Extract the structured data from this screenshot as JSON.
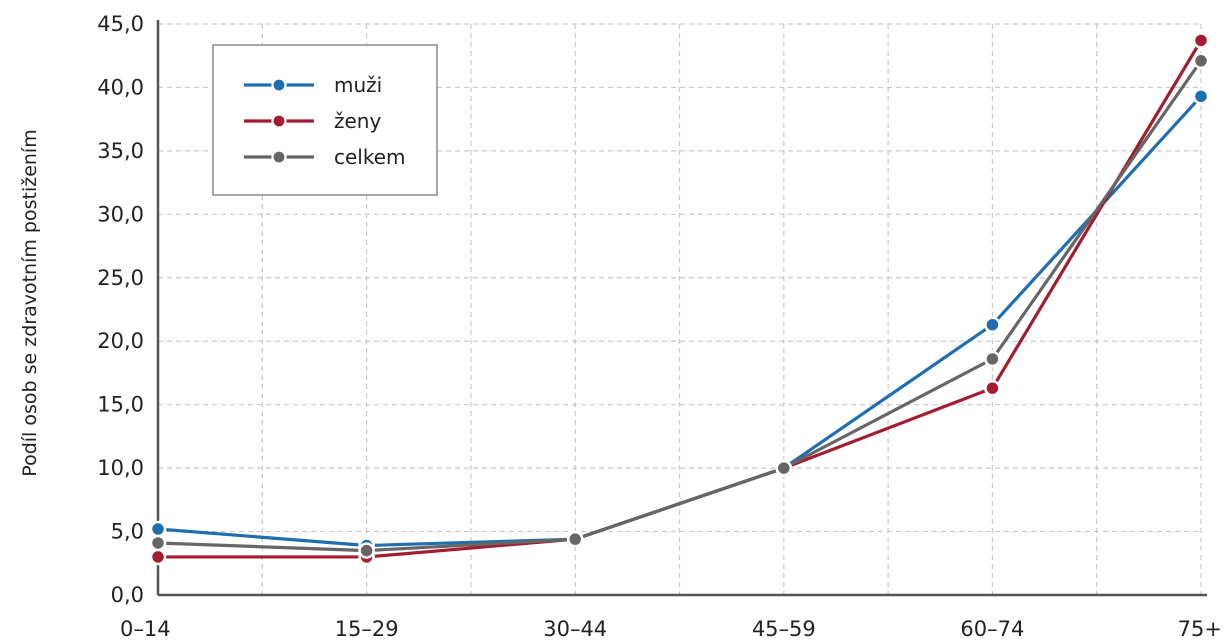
{
  "chart_data": {
    "type": "line",
    "ylabel": "Podíl osob se zdravotním postižením",
    "xlabel": "",
    "categories": [
      "0–14",
      "15–29",
      "30–44",
      "45–59",
      "60–74",
      "75+"
    ],
    "ylim": [
      0,
      45
    ],
    "y_ticks": [
      0,
      5,
      10,
      15,
      20,
      25,
      30,
      35,
      40,
      45
    ],
    "y_tick_labels": [
      "0,0",
      "5,0",
      "10,0",
      "15,0",
      "20,0",
      "25,0",
      "30,0",
      "35,0",
      "40,0",
      "45,0"
    ],
    "grid": true,
    "legend_position": "top-left",
    "series": [
      {
        "name": "muži",
        "color": "#1f6eb1",
        "values": [
          5.2,
          3.9,
          4.4,
          10.0,
          21.3,
          39.3
        ]
      },
      {
        "name": "ženy",
        "color": "#a51c30",
        "values": [
          3.0,
          3.0,
          4.4,
          10.0,
          16.3,
          43.7
        ]
      },
      {
        "name": "celkem",
        "color": "#666666",
        "values": [
          4.1,
          3.5,
          4.4,
          10.0,
          18.6,
          42.1
        ]
      }
    ]
  }
}
